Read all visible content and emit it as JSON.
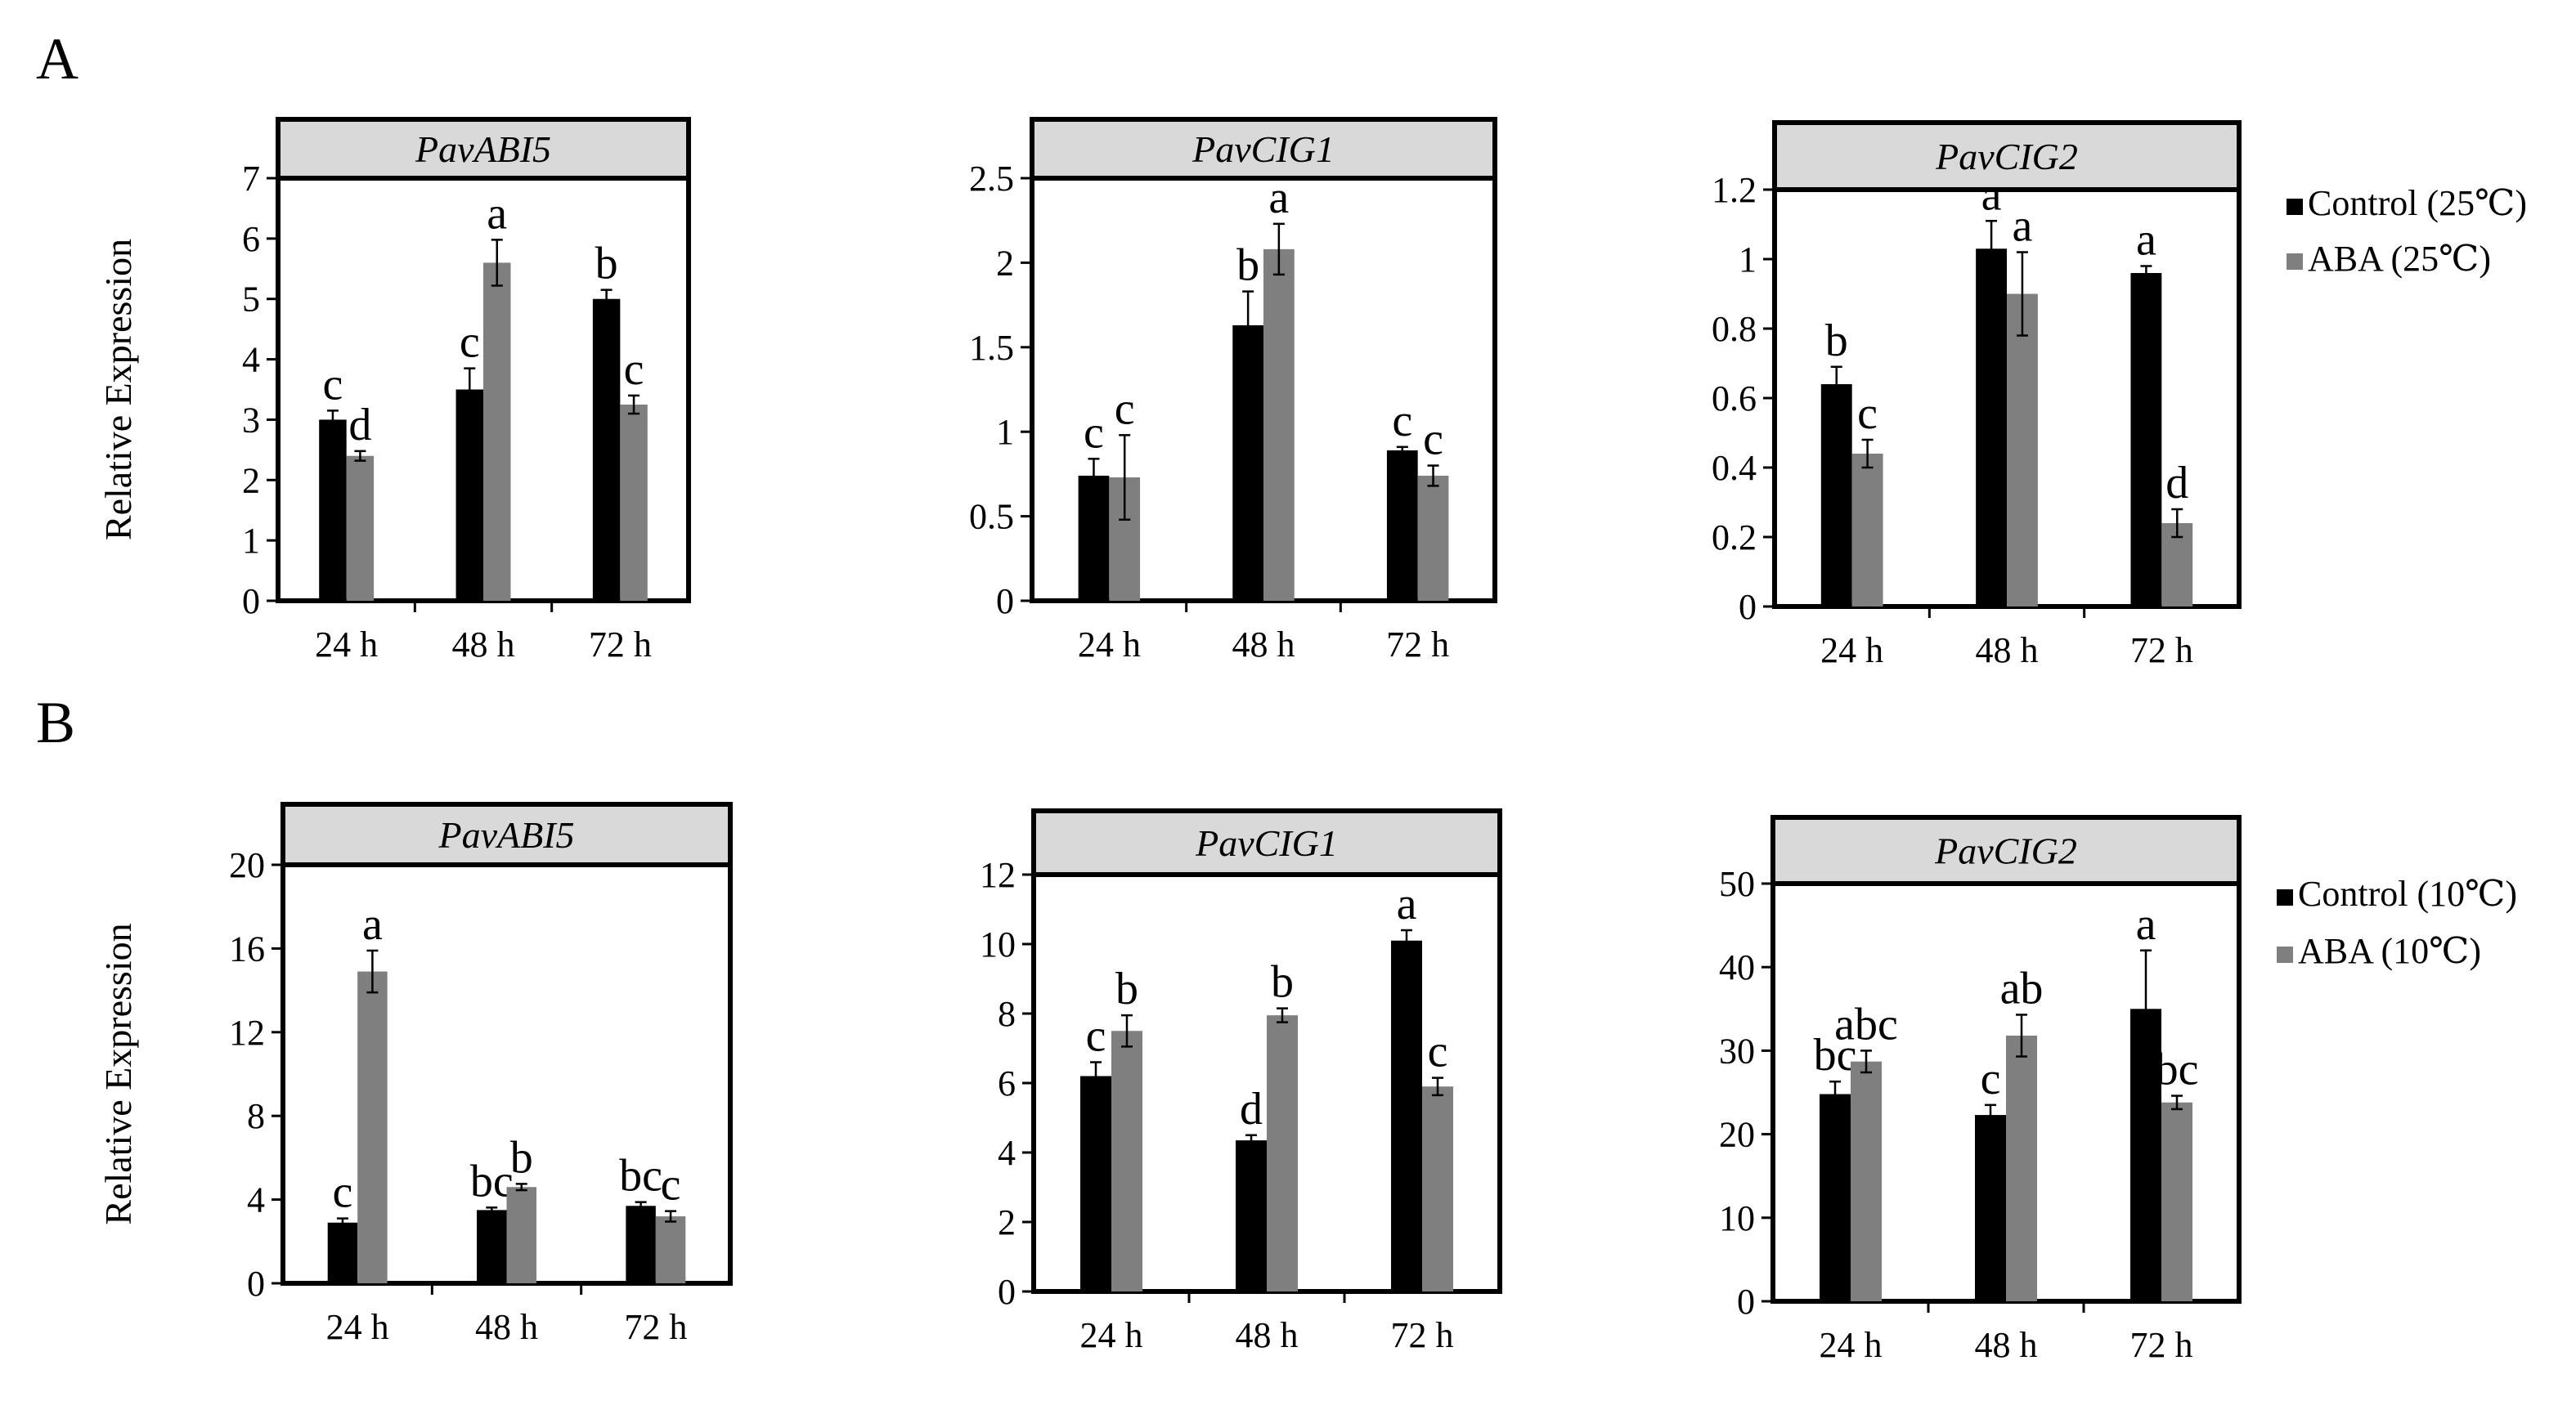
{
  "panels": [
    {
      "letter": "A"
    },
    {
      "letter": "B"
    }
  ],
  "legend": {
    "A": {
      "control_label": "Control (25℃)",
      "aba_label": "ABA (25℃)"
    },
    "B": {
      "control_label": "Control (10℃)",
      "aba_label": "ABA (10℃)"
    }
  },
  "colors": {
    "control": "#000000",
    "aba": "#7f7f7f",
    "title_box": "#d9d9d9"
  },
  "chart_data": [
    {
      "type": "bar",
      "panel": "A",
      "title": "PavABI5",
      "ylabel": "Relative  Expression",
      "categories": [
        "24 h",
        "48 h",
        "72 h"
      ],
      "ylim": [
        0,
        7
      ],
      "yticks": [
        "0",
        "1",
        "2",
        "3",
        "4",
        "5",
        "6",
        "7"
      ],
      "series": [
        {
          "name": "Control (25℃)",
          "values": [
            3.0,
            3.5,
            5.0
          ],
          "errors": [
            0.15,
            0.35,
            0.15
          ],
          "labels": [
            "c",
            "c",
            "b"
          ]
        },
        {
          "name": "ABA (25℃)",
          "values": [
            2.4,
            5.6,
            3.25
          ],
          "errors": [
            0.08,
            0.38,
            0.15
          ],
          "labels": [
            "d",
            "a",
            "c"
          ]
        }
      ]
    },
    {
      "type": "bar",
      "panel": "A",
      "title": "PavCIG1",
      "ylabel": "",
      "categories": [
        "24 h",
        "48 h",
        "72 h"
      ],
      "ylim": [
        0,
        2.5
      ],
      "yticks": [
        "0",
        "0.5",
        "1",
        "1.5",
        "2",
        "2.5"
      ],
      "series": [
        {
          "name": "Control (25℃)",
          "values": [
            0.74,
            1.63,
            0.89
          ],
          "errors": [
            0.1,
            0.2,
            0.02
          ],
          "labels": [
            "c",
            "b",
            "c"
          ]
        },
        {
          "name": "ABA (25℃)",
          "values": [
            0.73,
            2.08,
            0.74
          ],
          "errors": [
            0.25,
            0.15,
            0.06
          ],
          "labels": [
            "c",
            "a",
            "c"
          ]
        }
      ]
    },
    {
      "type": "bar",
      "panel": "A",
      "title": "PavCIG2",
      "ylabel": "",
      "categories": [
        "24 h",
        "48 h",
        "72 h"
      ],
      "ylim": [
        0,
        1.2
      ],
      "yticks": [
        "0",
        "0.2",
        "0.4",
        "0.6",
        "0.8",
        "1",
        "1.2"
      ],
      "series": [
        {
          "name": "Control (25℃)",
          "values": [
            0.64,
            1.03,
            0.96
          ],
          "errors": [
            0.05,
            0.08,
            0.02
          ],
          "labels": [
            "b",
            "a",
            "a"
          ]
        },
        {
          "name": "ABA (25℃)",
          "values": [
            0.44,
            0.9,
            0.24
          ],
          "errors": [
            0.04,
            0.12,
            0.04
          ],
          "labels": [
            "c",
            "a",
            "d"
          ]
        }
      ]
    },
    {
      "type": "bar",
      "panel": "B",
      "title": "PavABI5",
      "ylabel": "Relative  Expression",
      "categories": [
        "24 h",
        "48 h",
        "72 h"
      ],
      "ylim": [
        0,
        20
      ],
      "yticks": [
        "0",
        "4",
        "8",
        "12",
        "16",
        "20"
      ],
      "series": [
        {
          "name": "Control (10℃)",
          "values": [
            2.9,
            3.5,
            3.7
          ],
          "errors": [
            0.2,
            0.12,
            0.18
          ],
          "labels": [
            "c",
            "bc",
            "bc"
          ]
        },
        {
          "name": "ABA (10℃)",
          "values": [
            14.9,
            4.6,
            3.2
          ],
          "errors": [
            1.0,
            0.15,
            0.25
          ],
          "labels": [
            "a",
            "b",
            "c"
          ]
        }
      ]
    },
    {
      "type": "bar",
      "panel": "B",
      "title": "PavCIG1",
      "ylabel": "",
      "categories": [
        "24 h",
        "48 h",
        "72 h"
      ],
      "ylim": [
        0,
        12
      ],
      "yticks": [
        "0",
        "2",
        "4",
        "6",
        "8",
        "10",
        "12"
      ],
      "series": [
        {
          "name": "Control (10℃)",
          "values": [
            6.2,
            4.35,
            10.1
          ],
          "errors": [
            0.4,
            0.15,
            0.3
          ],
          "labels": [
            "c",
            "d",
            "a"
          ]
        },
        {
          "name": "ABA (10℃)",
          "values": [
            7.5,
            7.95,
            5.9
          ],
          "errors": [
            0.45,
            0.2,
            0.25
          ],
          "labels": [
            "b",
            "b",
            "c"
          ]
        }
      ]
    },
    {
      "type": "bar",
      "panel": "B",
      "title": "PavCIG2",
      "ylabel": "",
      "categories": [
        "24 h",
        "48 h",
        "72 h"
      ],
      "ylim": [
        0,
        50
      ],
      "yticks": [
        "0",
        "10",
        "20",
        "30",
        "40",
        "50"
      ],
      "series": [
        {
          "name": "Control (10℃)",
          "values": [
            24.8,
            22.3,
            35.0
          ],
          "errors": [
            1.5,
            1.2,
            7.0
          ],
          "labels": [
            "bc",
            "c",
            "a"
          ]
        },
        {
          "name": "ABA (10℃)",
          "values": [
            28.7,
            31.8,
            23.8
          ],
          "errors": [
            1.3,
            2.5,
            0.8
          ],
          "labels": [
            "abc",
            "ab",
            "bc"
          ]
        }
      ]
    }
  ]
}
